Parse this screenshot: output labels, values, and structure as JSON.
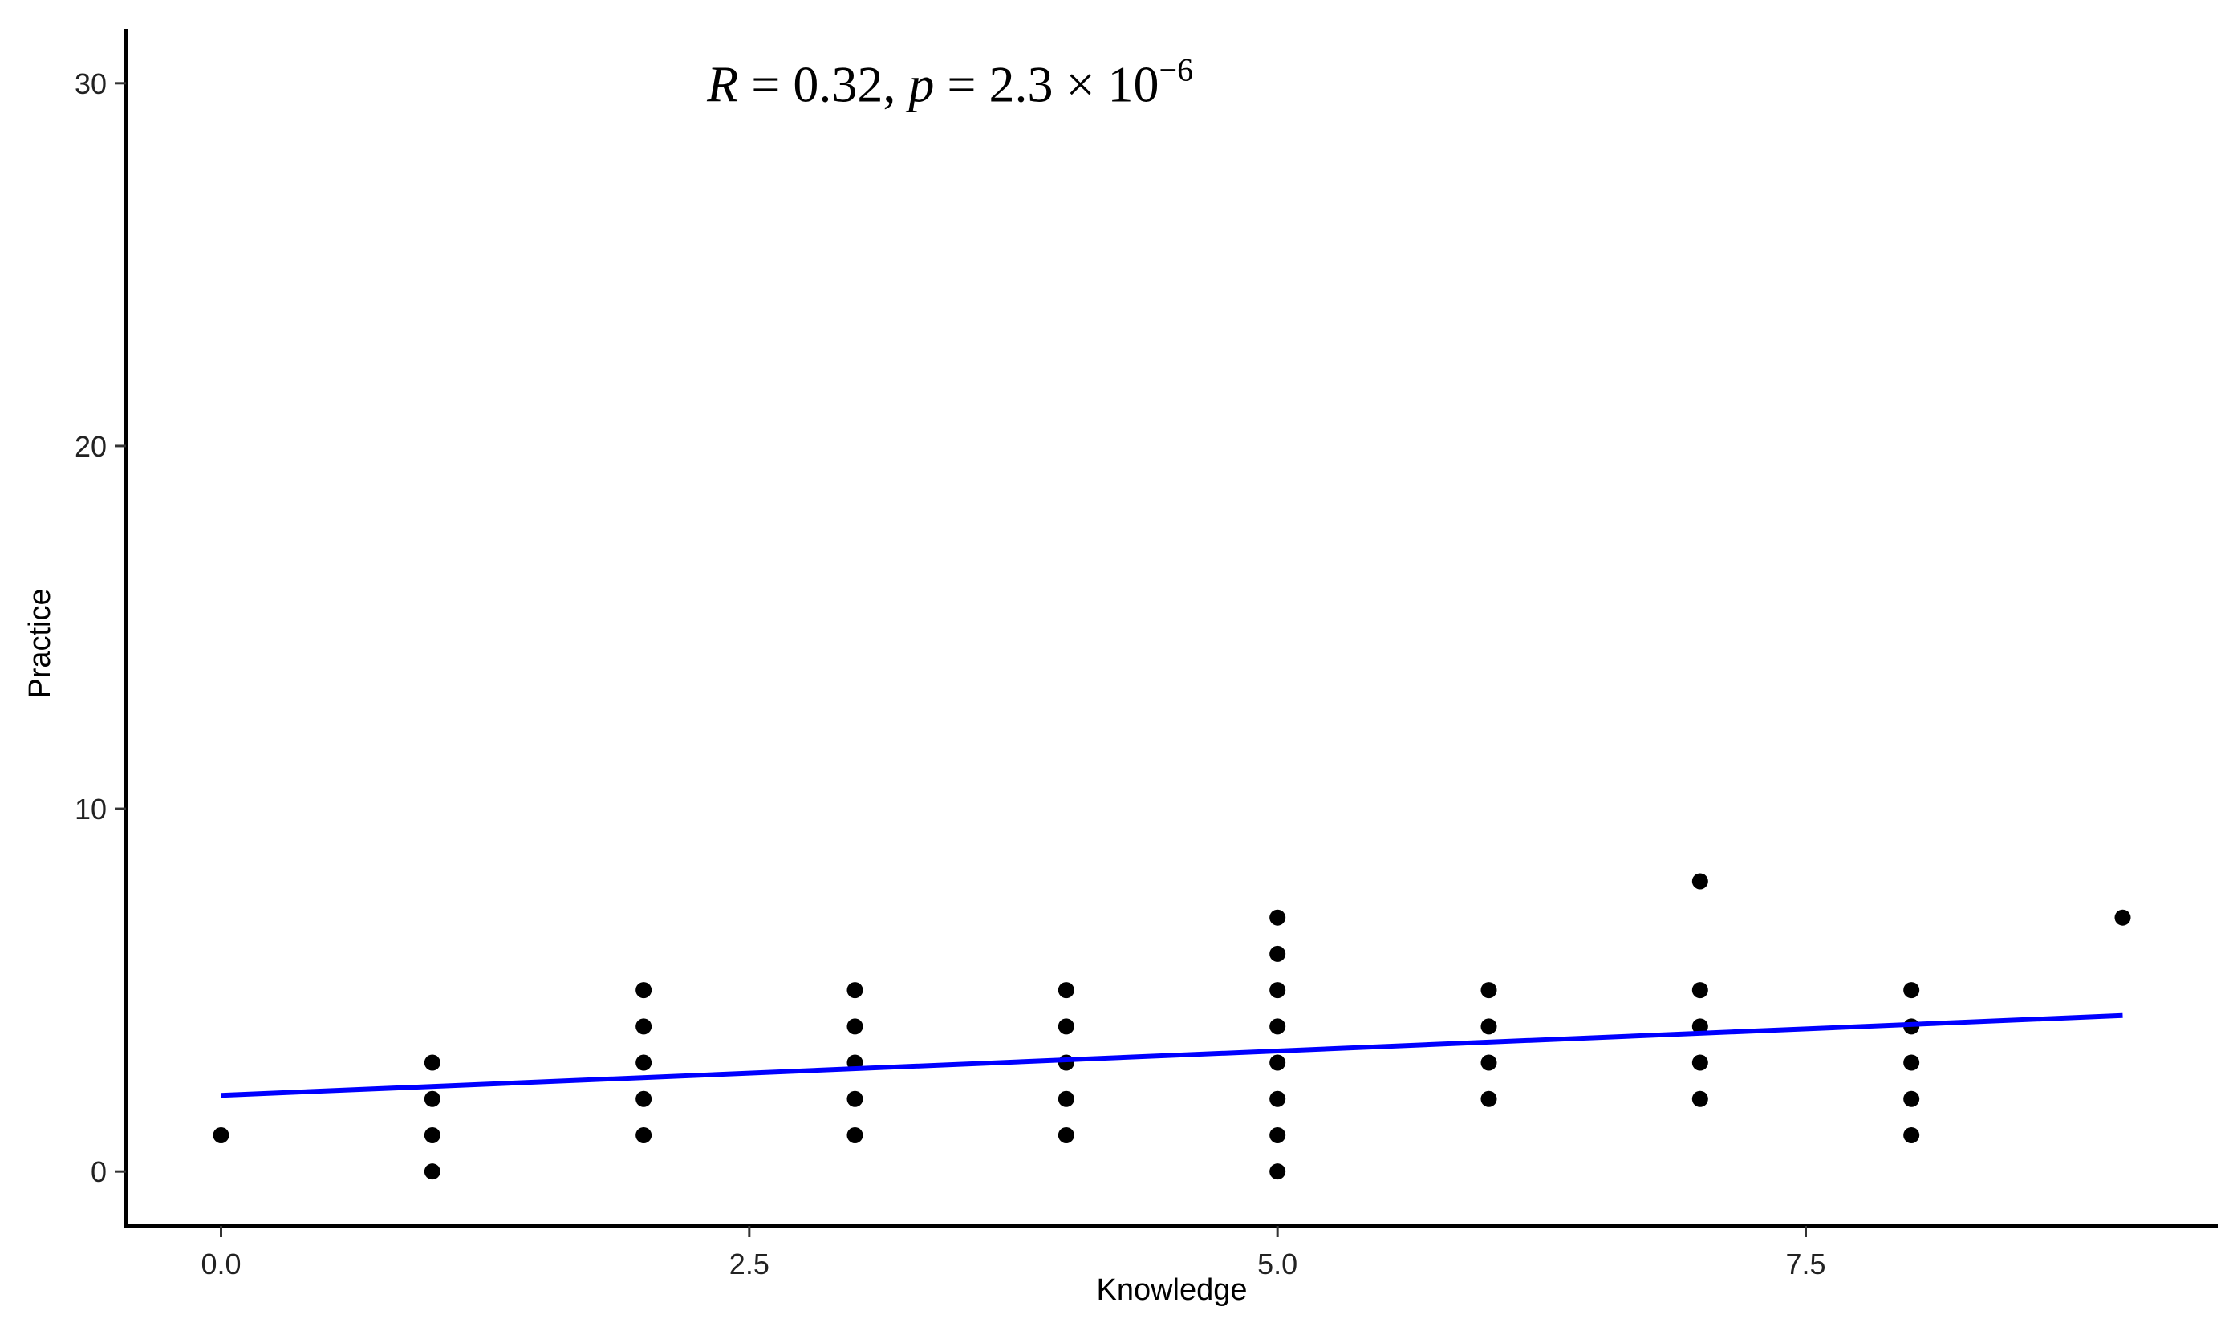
{
  "chart_data": {
    "type": "scatter",
    "title": "",
    "xlabel": "Knowledge",
    "ylabel": "Practice",
    "xlim": [
      -0.45,
      9.45
    ],
    "ylim": [
      -1.5,
      31.5
    ],
    "x_ticks": [
      0.0,
      2.5,
      5.0,
      7.5
    ],
    "x_tick_labels": [
      "0.0",
      "2.5",
      "5.0",
      "7.5"
    ],
    "y_ticks": [
      0,
      10,
      20,
      30
    ],
    "y_tick_labels": [
      "0",
      "10",
      "20",
      "30"
    ],
    "grid": false,
    "legend": "none",
    "point_color": "#000000",
    "points": [
      {
        "x": 0,
        "y": 1
      },
      {
        "x": 1,
        "y": 0
      },
      {
        "x": 1,
        "y": 1
      },
      {
        "x": 1,
        "y": 2
      },
      {
        "x": 1,
        "y": 3
      },
      {
        "x": 2,
        "y": 1
      },
      {
        "x": 2,
        "y": 2
      },
      {
        "x": 2,
        "y": 3
      },
      {
        "x": 2,
        "y": 4
      },
      {
        "x": 2,
        "y": 5
      },
      {
        "x": 3,
        "y": 1
      },
      {
        "x": 3,
        "y": 2
      },
      {
        "x": 3,
        "y": 3
      },
      {
        "x": 3,
        "y": 4
      },
      {
        "x": 3,
        "y": 5
      },
      {
        "x": 4,
        "y": 1
      },
      {
        "x": 4,
        "y": 2
      },
      {
        "x": 4,
        "y": 3
      },
      {
        "x": 4,
        "y": 4
      },
      {
        "x": 4,
        "y": 5
      },
      {
        "x": 5,
        "y": 0
      },
      {
        "x": 5,
        "y": 1
      },
      {
        "x": 5,
        "y": 2
      },
      {
        "x": 5,
        "y": 3
      },
      {
        "x": 5,
        "y": 4
      },
      {
        "x": 5,
        "y": 5
      },
      {
        "x": 5,
        "y": 6
      },
      {
        "x": 5,
        "y": 7
      },
      {
        "x": 6,
        "y": 2
      },
      {
        "x": 6,
        "y": 3
      },
      {
        "x": 6,
        "y": 4
      },
      {
        "x": 6,
        "y": 5
      },
      {
        "x": 7,
        "y": 2
      },
      {
        "x": 7,
        "y": 3
      },
      {
        "x": 7,
        "y": 4
      },
      {
        "x": 7,
        "y": 5
      },
      {
        "x": 7,
        "y": 8
      },
      {
        "x": 8,
        "y": 1
      },
      {
        "x": 8,
        "y": 2
      },
      {
        "x": 8,
        "y": 3
      },
      {
        "x": 8,
        "y": 4
      },
      {
        "x": 8,
        "y": 5
      },
      {
        "x": 9,
        "y": 7
      }
    ],
    "regression_line": {
      "color": "#0000ff",
      "x": [
        0,
        9
      ],
      "y": [
        2.1,
        4.3
      ]
    },
    "annotation": {
      "R_symbol": "R",
      "R_text": " = 0.32, ",
      "p_symbol": "p",
      "p_text": " = 2.3 × 10",
      "p_exponent": "−6",
      "x": 2.3,
      "y": 29.5
    }
  }
}
